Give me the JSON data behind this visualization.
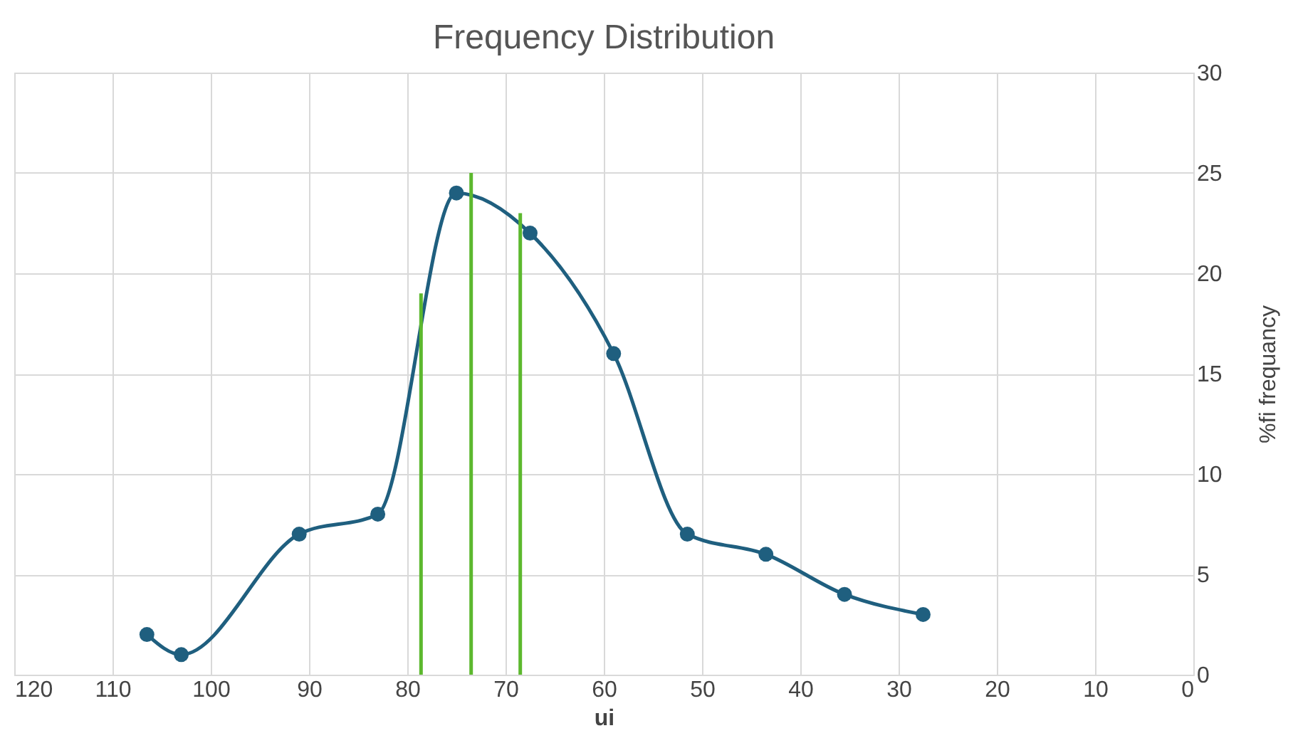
{
  "chart_data": {
    "type": "line",
    "title": "Frequency Distribution",
    "xlabel": "ui",
    "y2label": "%fi frequancy",
    "xlim": [
      120,
      0
    ],
    "xticks": [
      120,
      110,
      100,
      90,
      80,
      70,
      60,
      50,
      40,
      30,
      20,
      10,
      0
    ],
    "y2lim": [
      0,
      30
    ],
    "y2ticks": [
      0,
      5,
      10,
      15,
      20,
      25,
      30
    ],
    "grid": true,
    "marker": "circle",
    "series": [
      {
        "color": "#1f5f7f",
        "axis": "y2",
        "x": [
          106.5,
          103,
          91,
          83,
          75,
          67.5,
          59,
          51.5,
          43.5,
          35.5,
          27.5
        ],
        "values": [
          2,
          1,
          7,
          8,
          24,
          22,
          16,
          7,
          6,
          4,
          3
        ]
      },
      {
        "color": "#5cb82e",
        "axis": "y2",
        "marker": "none",
        "x": [
          78.6,
          78.6
        ],
        "values": [
          0,
          19
        ]
      },
      {
        "color": "#5cb82e",
        "axis": "y2",
        "marker": "none",
        "x": [
          73.5,
          73.5
        ],
        "values": [
          0,
          25
        ]
      },
      {
        "color": "#5cb82e",
        "axis": "y2",
        "marker": "none",
        "x": [
          68.5,
          68.5
        ],
        "values": [
          0,
          23
        ]
      }
    ]
  }
}
